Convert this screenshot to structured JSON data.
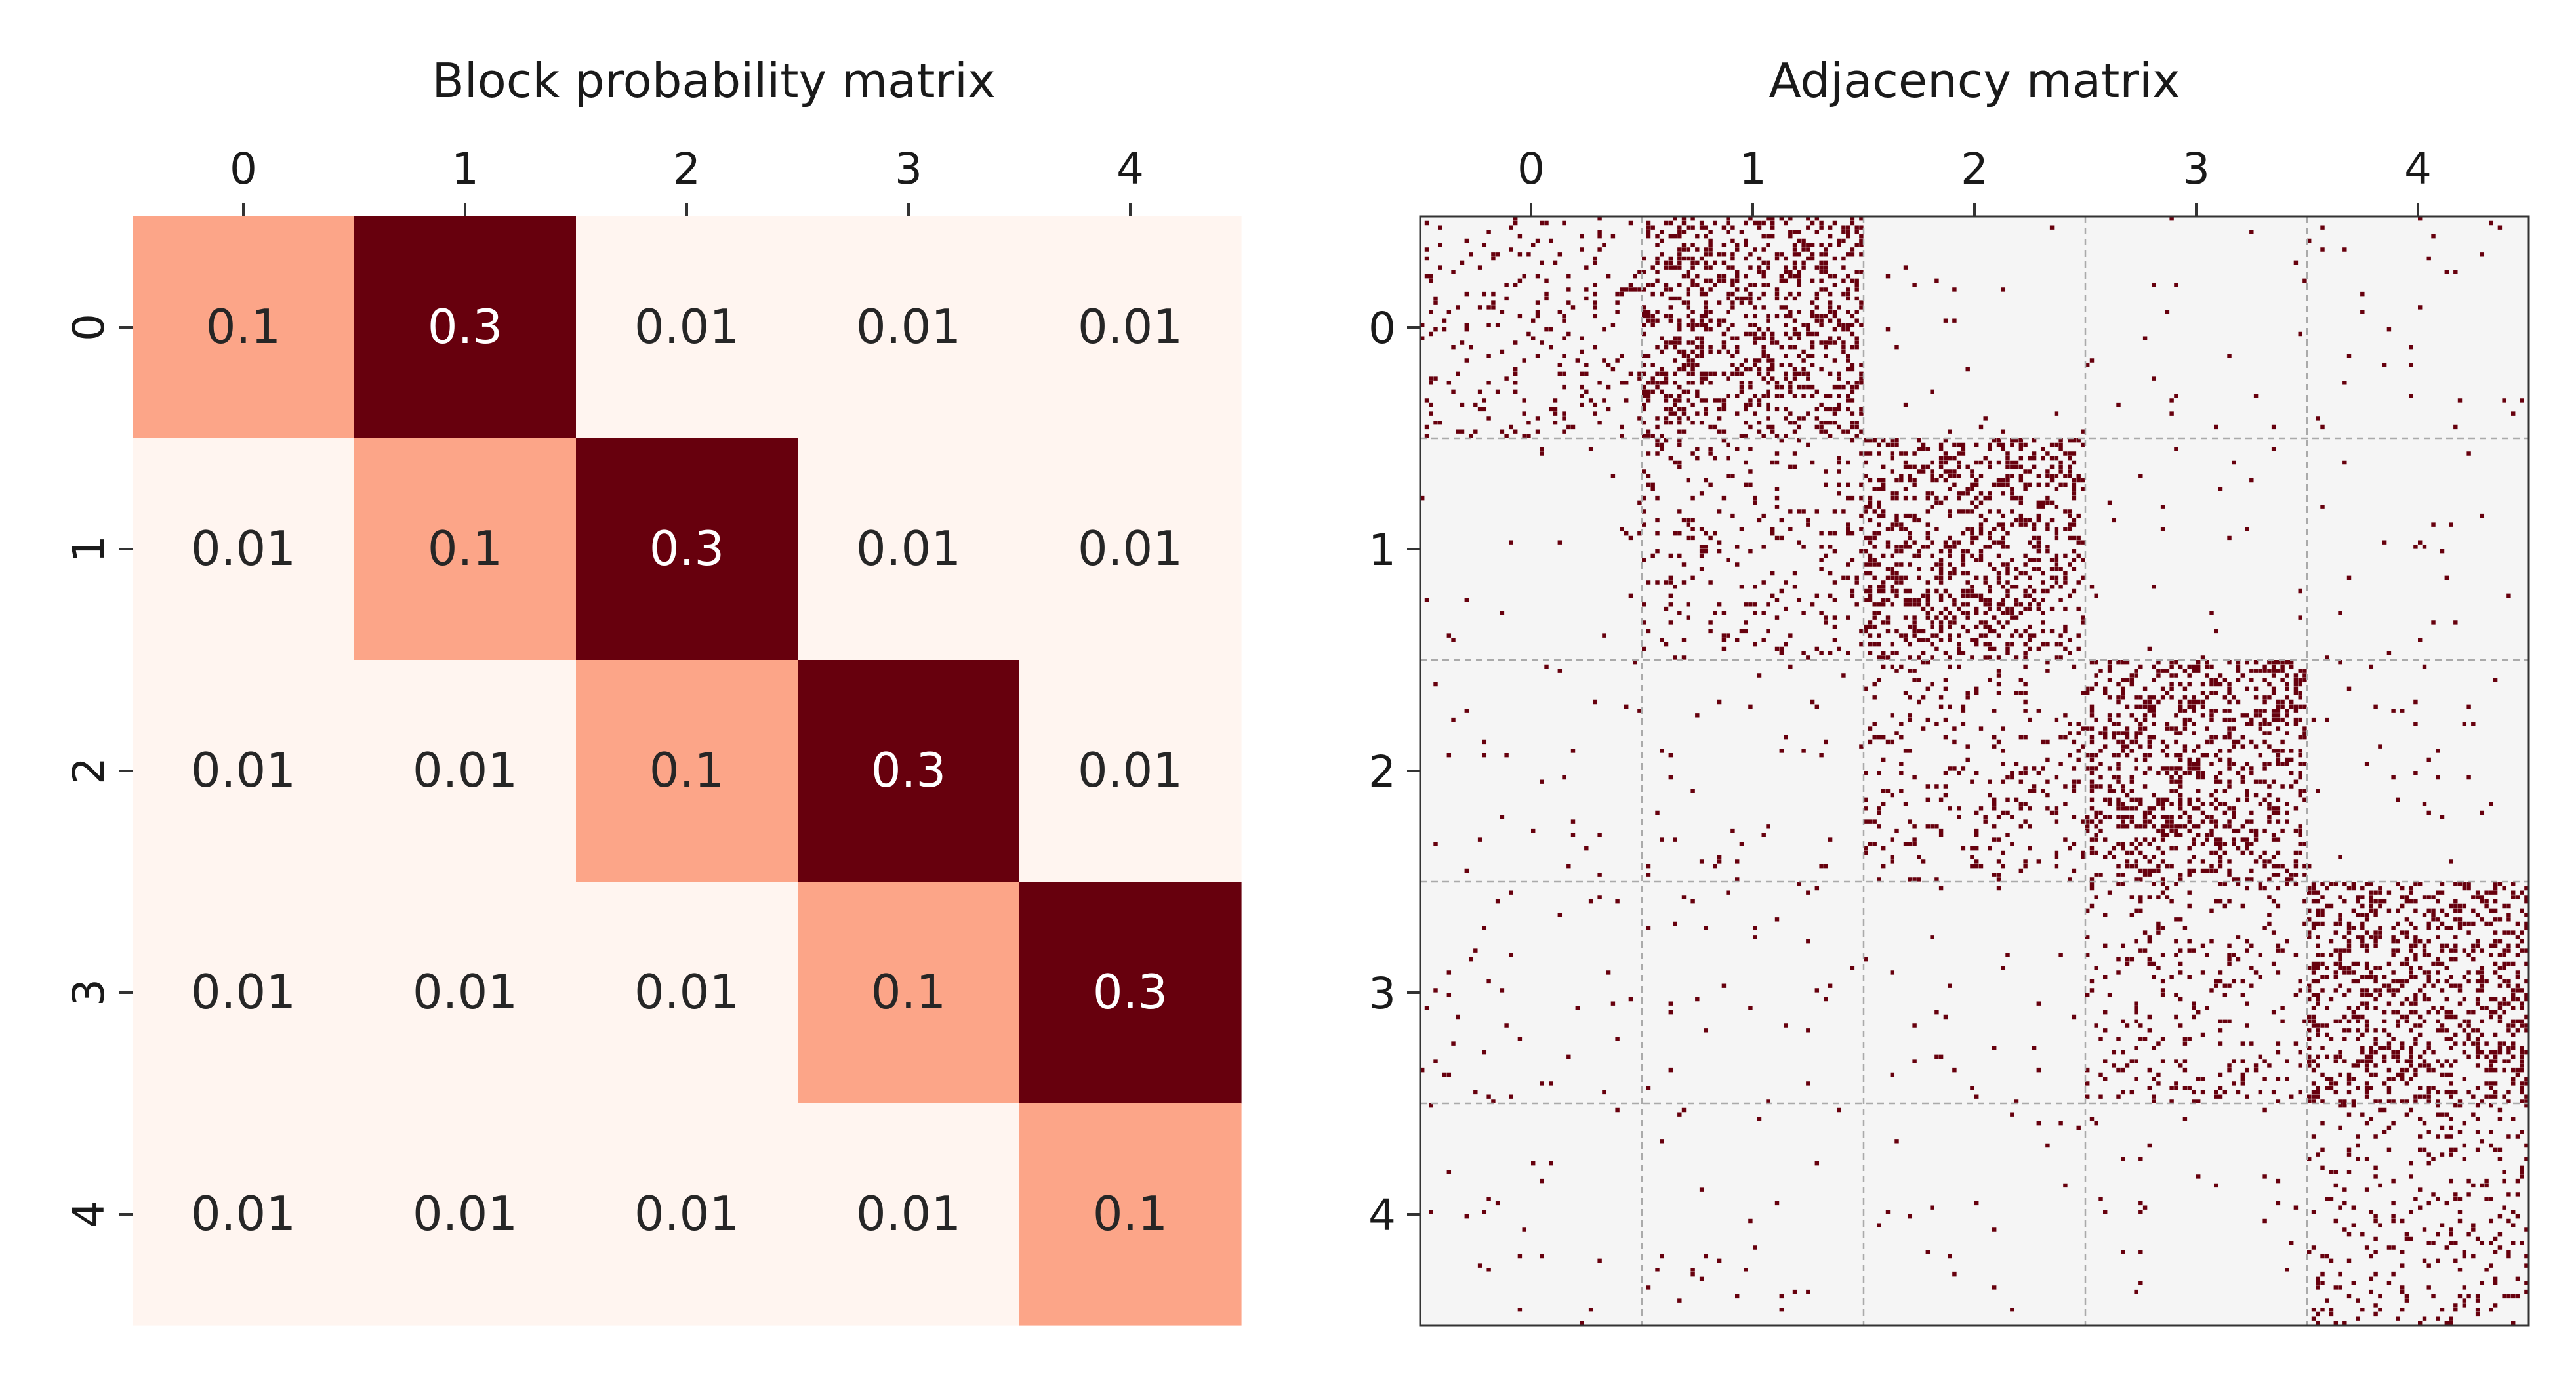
{
  "chart_data": [
    {
      "type": "heatmap",
      "title": "Block probability matrix",
      "x_tick_labels": [
        "0",
        "1",
        "2",
        "3",
        "4"
      ],
      "y_tick_labels": [
        "0",
        "1",
        "2",
        "3",
        "4"
      ],
      "values": [
        [
          0.1,
          0.3,
          0.01,
          0.01,
          0.01
        ],
        [
          0.01,
          0.1,
          0.3,
          0.01,
          0.01
        ],
        [
          0.01,
          0.01,
          0.1,
          0.3,
          0.01
        ],
        [
          0.01,
          0.01,
          0.01,
          0.1,
          0.3
        ],
        [
          0.01,
          0.01,
          0.01,
          0.01,
          0.1
        ]
      ],
      "cell_labels": [
        [
          "0.1",
          "0.3",
          "0.01",
          "0.01",
          "0.01"
        ],
        [
          "0.01",
          "0.1",
          "0.3",
          "0.01",
          "0.01"
        ],
        [
          "0.01",
          "0.01",
          "0.1",
          "0.3",
          "0.01"
        ],
        [
          "0.01",
          "0.01",
          "0.01",
          "0.1",
          "0.3"
        ],
        [
          "0.01",
          "0.01",
          "0.01",
          "0.01",
          "0.1"
        ]
      ],
      "colormap": "Reds",
      "colors": {
        "low": "#fff5f0",
        "mid": "#fca588",
        "high": "#67000d",
        "text_dark": "#262626",
        "text_light": "#ffffff"
      }
    },
    {
      "type": "heatmap",
      "title": "Adjacency matrix",
      "x_tick_labels": [
        "0",
        "1",
        "2",
        "3",
        "4"
      ],
      "y_tick_labels": [
        "0",
        "1",
        "2",
        "3",
        "4"
      ],
      "block_probabilities": [
        [
          0.1,
          0.3,
          0.01,
          0.01,
          0.01
        ],
        [
          0.01,
          0.1,
          0.3,
          0.01,
          0.01
        ],
        [
          0.01,
          0.01,
          0.1,
          0.3,
          0.01
        ],
        [
          0.01,
          0.01,
          0.01,
          0.1,
          0.3
        ],
        [
          0.01,
          0.01,
          0.01,
          0.01,
          0.1
        ]
      ],
      "block_grid_lines": "dashed",
      "colors": {
        "edge": "#67000d",
        "background": "#f5f5f5",
        "grid": "#aaaaaa"
      }
    }
  ]
}
